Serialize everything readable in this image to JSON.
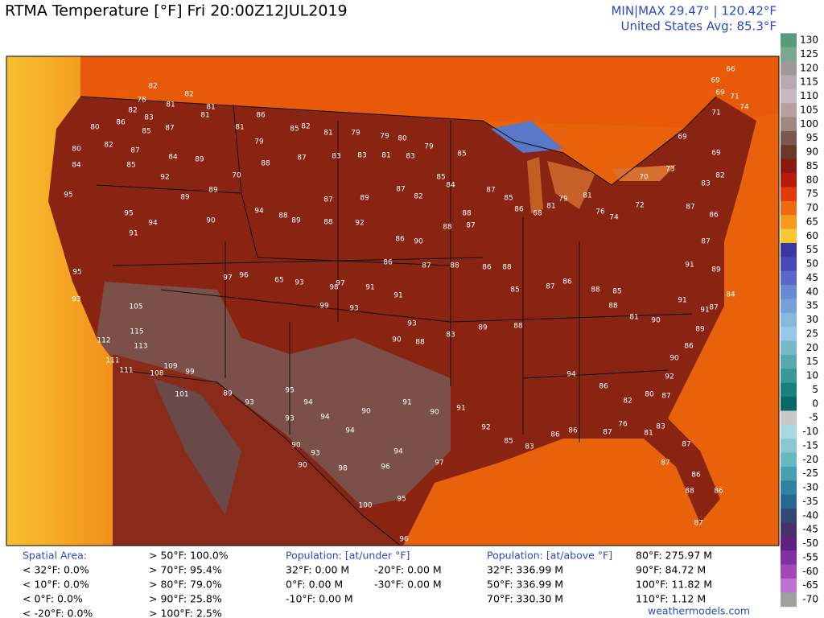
{
  "header": {
    "title": "RTMA Temperature [°F]  Fri 20:00Z12JUL2019",
    "minmax": "MIN|MAX 29.47° | 120.42°F",
    "average": "United States Avg: 85.3°F"
  },
  "colorbar": {
    "ticks": [
      130,
      125,
      120,
      115,
      110,
      105,
      100,
      95,
      90,
      85,
      80,
      75,
      70,
      65,
      60,
      55,
      50,
      45,
      40,
      35,
      30,
      25,
      20,
      15,
      10,
      5,
      0,
      -5,
      -10,
      -15,
      -20,
      -25,
      -30,
      -35,
      -40,
      -45,
      -50,
      -55,
      -60,
      -65,
      -70
    ],
    "colors": [
      "#5a9a78",
      "#7aa890",
      "#a09898",
      "#b8a8b0",
      "#c8b8c0",
      "#b8a0a0",
      "#a08880",
      "#7a5850",
      "#6a3828",
      "#8a1a10",
      "#b81a0a",
      "#e03a0a",
      "#f06a10",
      "#f89a20",
      "#f8c830",
      "#3838a0",
      "#4848b8",
      "#5868c8",
      "#6888d0",
      "#78a0d8",
      "#88b8e0",
      "#98c8e8",
      "#78b8c8",
      "#58a8b0",
      "#389898",
      "#188080",
      "#086868",
      "#c8c8c8",
      "#a8d8e0",
      "#88c8d0",
      "#68b8c0",
      "#48a0b0",
      "#3080a0",
      "#286890",
      "#304878",
      "#483068",
      "#602080",
      "#8030a0",
      "#a048b8",
      "#c070d0",
      "#a0a0a0"
    ]
  },
  "map": {
    "stations": [
      82,
      78,
      81,
      82,
      83,
      80,
      86,
      85,
      87,
      81,
      82,
      81,
      81,
      86,
      79,
      85,
      82,
      81,
      79,
      79,
      80,
      79,
      85,
      80,
      82,
      87,
      84,
      89,
      84,
      85,
      92,
      70,
      88,
      87,
      83,
      83,
      81,
      83,
      85,
      84,
      95,
      95,
      94,
      91,
      89,
      89,
      90,
      94,
      88,
      89,
      88,
      92,
      87,
      89,
      87,
      82,
      95,
      93,
      105,
      115,
      112,
      113,
      111,
      111,
      108,
      109,
      99,
      101,
      97,
      96,
      65,
      93,
      99,
      98,
      97,
      93,
      91,
      91,
      93,
      90,
      88,
      83,
      89,
      88,
      89,
      93,
      95,
      94,
      93,
      94,
      94,
      90,
      91,
      90,
      91,
      92,
      85,
      83,
      86,
      86,
      87,
      76,
      81,
      83,
      87,
      87,
      86,
      88,
      86,
      87,
      100,
      95,
      96,
      97,
      96,
      94,
      98,
      90,
      93,
      90,
      94,
      86,
      82,
      80,
      87,
      92,
      90,
      86,
      89,
      91,
      87,
      84,
      87,
      91,
      89,
      87,
      86,
      83,
      82,
      69,
      71,
      69,
      66,
      69,
      71,
      74,
      69,
      73,
      70,
      72,
      74,
      76,
      81,
      79,
      81,
      68,
      86,
      85,
      87,
      88,
      87,
      88,
      90,
      86,
      86,
      87,
      88,
      86,
      88,
      85,
      87,
      86,
      88,
      85,
      88,
      81,
      90,
      91
    ]
  },
  "footer": {
    "spatial_area": {
      "title": "Spatial Area:",
      "lines": [
        "< 32°F: 0.0%",
        "< 10°F: 0.0%",
        "< 0°F: 0.0%",
        "< -20°F: 0.0%"
      ]
    },
    "spatial_above": [
      "> 50°F: 100.0%",
      "> 70°F: 95.4%",
      "> 80°F: 79.0%",
      "> 90°F: 25.8%",
      "> 100°F: 2.5%"
    ],
    "population_under": {
      "title": "Population: [at/under °F]",
      "lines": [
        "32°F: 0.00 M",
        "0°F: 0.00 M",
        "-10°F: 0.00 M"
      ],
      "lines_2": [
        "-20°F: 0.00 M",
        "-30°F: 0.00 M"
      ]
    },
    "population_above": {
      "title": "Population: [at/above °F]",
      "lines": [
        "32°F: 336.99 M",
        "50°F: 336.99 M",
        "70°F: 330.30 M"
      ],
      "lines_2": [
        "80°F: 275.97 M",
        "90°F: 84.72 M",
        "100°F: 11.82 M",
        "110°F: 1.12 M"
      ]
    },
    "credit": "weathermodels.com"
  }
}
